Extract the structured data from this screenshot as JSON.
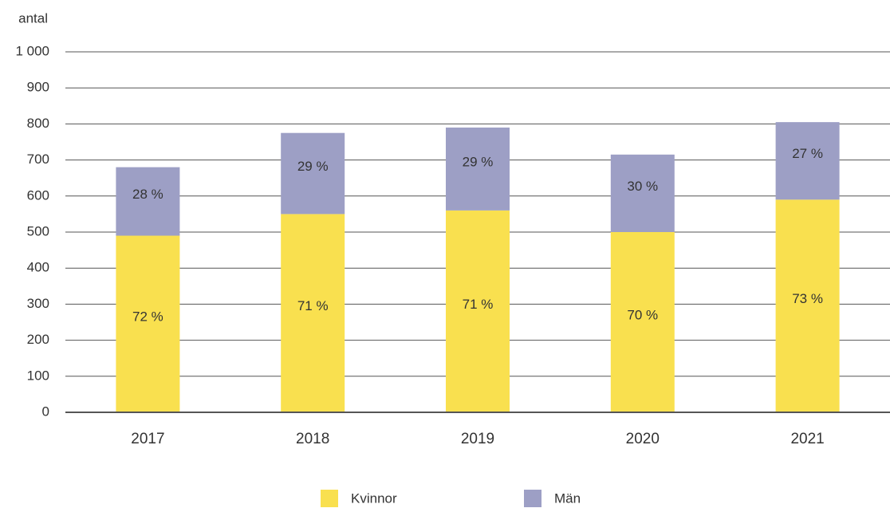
{
  "chart_data": {
    "type": "stacked_bar",
    "y_axis_label": "antal",
    "categories": [
      "2017",
      "2018",
      "2019",
      "2020",
      "2021"
    ],
    "series": [
      {
        "name": "Kvinnor",
        "color": "#f9e04f",
        "values": [
          490,
          550,
          560,
          500,
          590
        ],
        "share_labels": [
          "72 %",
          "71 %",
          "71 %",
          "70 %",
          "73 %"
        ]
      },
      {
        "name": "Män",
        "color": "#9d9fc5",
        "values": [
          190,
          225,
          230,
          215,
          215
        ],
        "share_labels": [
          "28 %",
          "29 %",
          "29 %",
          "30 %",
          "27 %"
        ]
      }
    ],
    "ylim": [
      0,
      1000
    ],
    "yticks": [
      0,
      100,
      200,
      300,
      400,
      500,
      600,
      700,
      800,
      900,
      {
        "value": 1000,
        "label": "1 000"
      }
    ],
    "grid": true,
    "legend": "bottom"
  }
}
